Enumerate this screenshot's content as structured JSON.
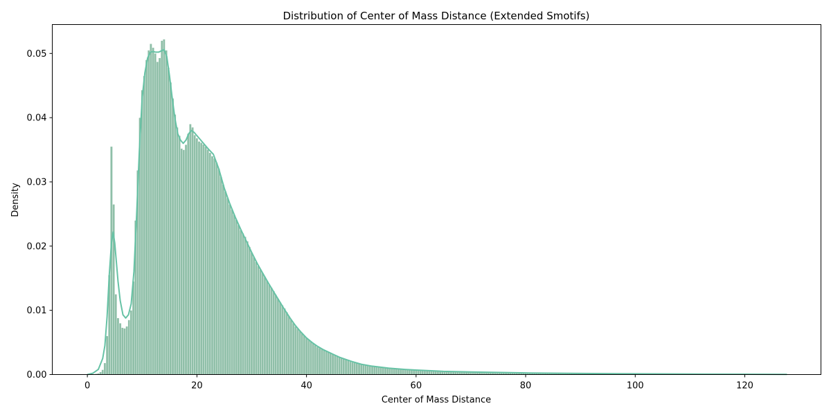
{
  "chart_data": {
    "type": "bar",
    "subtype": "histogram_with_kde",
    "title": "Distribution of Center of Mass Distance (Extended Smotifs)",
    "xlabel": "Center of Mass Distance",
    "ylabel": "Density",
    "xlim": [
      -6.4,
      133.9
    ],
    "ylim": [
      0,
      0.0545
    ],
    "xticks": [
      0,
      20,
      40,
      60,
      80,
      100,
      120
    ],
    "xtick_labels": [
      "0",
      "20",
      "40",
      "60",
      "80",
      "100",
      "120"
    ],
    "yticks": [
      0.0,
      0.01,
      0.02,
      0.03,
      0.04,
      0.05
    ],
    "ytick_labels": [
      "0.00",
      "0.01",
      "0.02",
      "0.03",
      "0.04",
      "0.05"
    ],
    "grid": false,
    "legend": null,
    "colors": {
      "bar_fill": "#8fbfa8",
      "bar_edge": "#ffffff",
      "kde_line": "#66c2a5"
    },
    "histogram": {
      "bin_width": 0.4,
      "x_start": 1.0,
      "x_end": 127.7,
      "anchor_points": [
        [
          1.0,
          0.0
        ],
        [
          2.0,
          0.0002
        ],
        [
          2.6,
          0.0005
        ],
        [
          3.0,
          0.001
        ],
        [
          3.2,
          0.0018
        ],
        [
          3.4,
          0.003
        ],
        [
          3.6,
          0.006
        ],
        [
          3.8,
          0.0105
        ],
        [
          4.0,
          0.0155
        ],
        [
          4.2,
          0.02
        ],
        [
          4.4,
          0.0355
        ],
        [
          4.6,
          0.0402
        ],
        [
          4.8,
          0.0265
        ],
        [
          5.0,
          0.0165
        ],
        [
          5.2,
          0.0125
        ],
        [
          5.4,
          0.0097
        ],
        [
          5.6,
          0.0088
        ],
        [
          6.0,
          0.008
        ],
        [
          6.4,
          0.0073
        ],
        [
          6.8,
          0.0072
        ],
        [
          7.2,
          0.0075
        ],
        [
          7.6,
          0.0085
        ],
        [
          8.0,
          0.01
        ],
        [
          8.4,
          0.0145
        ],
        [
          8.8,
          0.024
        ],
        [
          9.2,
          0.0318
        ],
        [
          9.6,
          0.04
        ],
        [
          10.0,
          0.0443
        ],
        [
          10.4,
          0.0465
        ],
        [
          10.8,
          0.049
        ],
        [
          11.2,
          0.0505
        ],
        [
          11.6,
          0.0515
        ],
        [
          12.0,
          0.0509
        ],
        [
          12.4,
          0.05
        ],
        [
          12.8,
          0.0487
        ],
        [
          13.2,
          0.0493
        ],
        [
          13.6,
          0.052
        ],
        [
          14.0,
          0.0522
        ],
        [
          14.4,
          0.0505
        ],
        [
          14.8,
          0.0478
        ],
        [
          15.2,
          0.0455
        ],
        [
          15.6,
          0.043
        ],
        [
          16.0,
          0.0405
        ],
        [
          16.4,
          0.0385
        ],
        [
          16.8,
          0.0372
        ],
        [
          17.2,
          0.0352
        ],
        [
          17.6,
          0.035
        ],
        [
          18.0,
          0.0358
        ],
        [
          18.4,
          0.0375
        ],
        [
          18.8,
          0.039
        ],
        [
          19.2,
          0.0385
        ],
        [
          19.6,
          0.0373
        ],
        [
          20.0,
          0.0368
        ],
        [
          20.4,
          0.0363
        ],
        [
          21.0,
          0.036
        ],
        [
          21.6,
          0.0355
        ],
        [
          22.2,
          0.0348
        ],
        [
          22.8,
          0.034
        ],
        [
          23.4,
          0.0335
        ],
        [
          24.0,
          0.032
        ],
        [
          25.0,
          0.029
        ],
        [
          26.0,
          0.0265
        ],
        [
          27.0,
          0.0245
        ],
        [
          28.0,
          0.0225
        ],
        [
          29.0,
          0.0212
        ],
        [
          30.0,
          0.019
        ],
        [
          31.0,
          0.0172
        ],
        [
          32.0,
          0.0158
        ],
        [
          33.0,
          0.0143
        ],
        [
          34.0,
          0.013
        ],
        [
          35.0,
          0.0115
        ],
        [
          36.0,
          0.0103
        ],
        [
          37.0,
          0.0088
        ],
        [
          38.0,
          0.0075
        ],
        [
          39.0,
          0.0066
        ],
        [
          40.0,
          0.0057
        ],
        [
          41.0,
          0.005
        ],
        [
          42.0,
          0.0043
        ],
        [
          43.0,
          0.0039
        ],
        [
          44.0,
          0.0035
        ],
        [
          45.0,
          0.0031
        ],
        [
          46.0,
          0.0027
        ],
        [
          47.0,
          0.0024
        ],
        [
          48.0,
          0.002
        ],
        [
          49.0,
          0.0018
        ],
        [
          50.0,
          0.0016
        ],
        [
          52.0,
          0.0013
        ],
        [
          54.0,
          0.0011
        ],
        [
          56.0,
          0.0009
        ],
        [
          58.0,
          0.0008
        ],
        [
          60.0,
          0.0007
        ],
        [
          63.0,
          0.0006
        ],
        [
          66.0,
          0.0005
        ],
        [
          70.0,
          0.0004
        ],
        [
          75.0,
          0.0003
        ],
        [
          80.0,
          0.00025
        ],
        [
          90.0,
          0.0002
        ],
        [
          100.0,
          0.00012
        ],
        [
          110.0,
          8e-05
        ],
        [
          120.0,
          5e-05
        ],
        [
          127.7,
          3e-05
        ]
      ]
    },
    "kde_line": [
      [
        0.0,
        0.0
      ],
      [
        1.0,
        0.0002
      ],
      [
        2.0,
        0.0008
      ],
      [
        2.8,
        0.0025
      ],
      [
        3.2,
        0.0045
      ],
      [
        3.6,
        0.009
      ],
      [
        4.0,
        0.0155
      ],
      [
        4.4,
        0.0205
      ],
      [
        4.7,
        0.0222
      ],
      [
        5.0,
        0.0205
      ],
      [
        5.3,
        0.0175
      ],
      [
        5.6,
        0.0145
      ],
      [
        6.0,
        0.0115
      ],
      [
        6.5,
        0.0093
      ],
      [
        7.0,
        0.0088
      ],
      [
        7.5,
        0.0093
      ],
      [
        8.0,
        0.011
      ],
      [
        8.5,
        0.016
      ],
      [
        9.0,
        0.025
      ],
      [
        9.5,
        0.035
      ],
      [
        10.0,
        0.043
      ],
      [
        10.5,
        0.047
      ],
      [
        11.0,
        0.0493
      ],
      [
        11.5,
        0.0502
      ],
      [
        12.0,
        0.0503
      ],
      [
        12.5,
        0.0502
      ],
      [
        13.0,
        0.0502
      ],
      [
        13.5,
        0.0504
      ],
      [
        14.0,
        0.0506
      ],
      [
        14.5,
        0.0495
      ],
      [
        15.0,
        0.0465
      ],
      [
        15.5,
        0.043
      ],
      [
        16.0,
        0.0398
      ],
      [
        16.5,
        0.0375
      ],
      [
        17.0,
        0.0365
      ],
      [
        17.5,
        0.036
      ],
      [
        18.0,
        0.0365
      ],
      [
        18.5,
        0.0375
      ],
      [
        19.0,
        0.038
      ],
      [
        19.5,
        0.0377
      ],
      [
        20.0,
        0.0372
      ],
      [
        21.0,
        0.0362
      ],
      [
        22.0,
        0.0352
      ],
      [
        23.0,
        0.0343
      ],
      [
        24.0,
        0.032
      ],
      [
        25.0,
        0.029
      ],
      [
        26.0,
        0.0266
      ],
      [
        27.0,
        0.0245
      ],
      [
        28.0,
        0.0226
      ],
      [
        29.0,
        0.0208
      ],
      [
        30.0,
        0.019
      ],
      [
        31.0,
        0.0173
      ],
      [
        32.0,
        0.0158
      ],
      [
        33.0,
        0.0143
      ],
      [
        34.0,
        0.0129
      ],
      [
        35.0,
        0.0115
      ],
      [
        36.0,
        0.0101
      ],
      [
        37.0,
        0.0088
      ],
      [
        38.0,
        0.0076
      ],
      [
        39.0,
        0.0066
      ],
      [
        40.0,
        0.0057
      ],
      [
        41.0,
        0.005
      ],
      [
        42.0,
        0.0044
      ],
      [
        43.0,
        0.0039
      ],
      [
        44.0,
        0.0035
      ],
      [
        45.0,
        0.0031
      ],
      [
        46.0,
        0.0027
      ],
      [
        47.0,
        0.0024
      ],
      [
        48.0,
        0.0021
      ],
      [
        50.0,
        0.0016
      ],
      [
        52.0,
        0.0013
      ],
      [
        55.0,
        0.001
      ],
      [
        58.0,
        0.0008
      ],
      [
        60.0,
        0.0007
      ],
      [
        65.0,
        0.0005
      ],
      [
        70.0,
        0.0004
      ],
      [
        80.0,
        0.00025
      ],
      [
        90.0,
        0.00018
      ],
      [
        100.0,
        0.00012
      ],
      [
        110.0,
        8e-05
      ],
      [
        120.0,
        5e-05
      ],
      [
        127.7,
        3e-05
      ]
    ]
  }
}
